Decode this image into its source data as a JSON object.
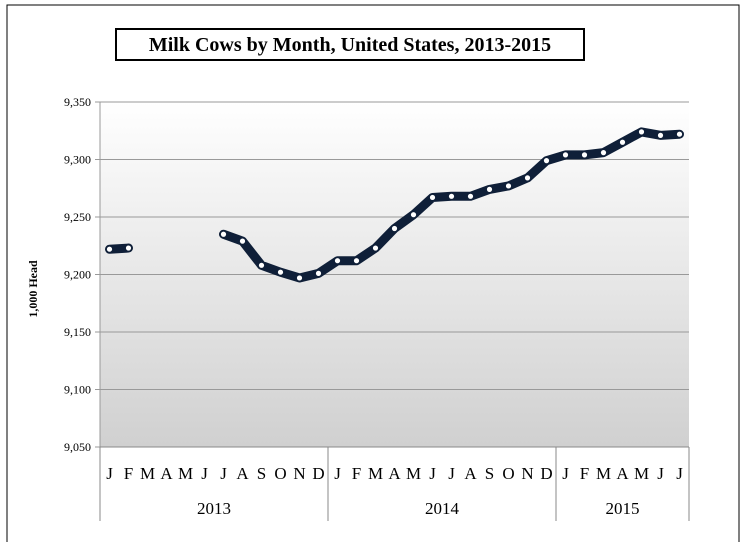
{
  "chart_data": {
    "type": "line",
    "title": "Milk Cows by Month, United States, 2013-2015",
    "ylabel": "1,000 Head",
    "xlabel": "",
    "ylim": [
      9050,
      9350
    ],
    "yticks": [
      "9,050",
      "9,100",
      "9,150",
      "9,200",
      "9,250",
      "9,300",
      "9,350"
    ],
    "grid": true,
    "legend": "none",
    "colors": {
      "line": "#0f1f38",
      "marker": "#ffffff",
      "plot_top": "#ffffff",
      "plot_bottom": "#d0d0d0",
      "grid": "#999999"
    },
    "month_labels": [
      "J",
      "F",
      "M",
      "A",
      "M",
      "J",
      "J",
      "A",
      "S",
      "O",
      "N",
      "D",
      "J",
      "F",
      "M",
      "A",
      "M",
      "J",
      "J",
      "A",
      "S",
      "O",
      "N",
      "D",
      "J",
      "F",
      "M",
      "A",
      "M",
      "J",
      "J"
    ],
    "years": [
      {
        "label": "2013",
        "months": 12
      },
      {
        "label": "2014",
        "months": 12
      },
      {
        "label": "2015",
        "months": 7
      }
    ],
    "series": [
      {
        "values": [
          9222,
          9223,
          null,
          null,
          null,
          null,
          9235,
          9229,
          9208,
          9202,
          9197,
          9201,
          9212,
          9212,
          9223,
          9240,
          9252,
          9267,
          9268,
          9268,
          9274,
          9277,
          9284,
          9299,
          9304,
          9304,
          9306,
          9315,
          9324,
          9321,
          9322
        ]
      }
    ]
  }
}
